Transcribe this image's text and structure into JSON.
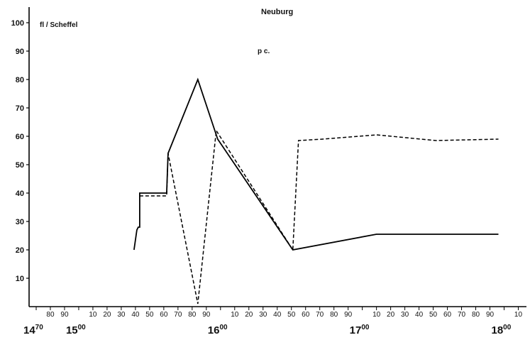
{
  "chart_data": {
    "type": "line",
    "title": "Neuburg",
    "ylabel": "fl / Scheffel",
    "annotation": "p c.",
    "ylim": [
      0,
      105
    ],
    "xlim": [
      1465,
      1811
    ],
    "grid": false,
    "yticks": [
      10,
      20,
      30,
      40,
      50,
      60,
      70,
      80,
      90,
      100
    ],
    "xtick_minor": [
      {
        "year": 1480,
        "label": "80"
      },
      {
        "year": 1490,
        "label": "90"
      },
      {
        "year": 1510,
        "label": "10"
      },
      {
        "year": 1520,
        "label": "20"
      },
      {
        "year": 1530,
        "label": "30"
      },
      {
        "year": 1540,
        "label": "40"
      },
      {
        "year": 1550,
        "label": "50"
      },
      {
        "year": 1560,
        "label": "60"
      },
      {
        "year": 1570,
        "label": "70"
      },
      {
        "year": 1580,
        "label": "80"
      },
      {
        "year": 1590,
        "label": "90"
      },
      {
        "year": 1610,
        "label": "10"
      },
      {
        "year": 1620,
        "label": "20"
      },
      {
        "year": 1630,
        "label": "30"
      },
      {
        "year": 1640,
        "label": "40"
      },
      {
        "year": 1650,
        "label": "50"
      },
      {
        "year": 1660,
        "label": "60"
      },
      {
        "year": 1670,
        "label": "70"
      },
      {
        "year": 1680,
        "label": "80"
      },
      {
        "year": 1690,
        "label": "90"
      },
      {
        "year": 1710,
        "label": "10"
      },
      {
        "year": 1720,
        "label": "20"
      },
      {
        "year": 1730,
        "label": "30"
      },
      {
        "year": 1740,
        "label": "40"
      },
      {
        "year": 1750,
        "label": "50"
      },
      {
        "year": 1760,
        "label": "60"
      },
      {
        "year": 1770,
        "label": "70"
      },
      {
        "year": 1780,
        "label": "80"
      },
      {
        "year": 1790,
        "label": "90"
      },
      {
        "year": 1810,
        "label": "10"
      }
    ],
    "xtick_major": [
      {
        "year": 1470,
        "base": "14",
        "sup": "70"
      },
      {
        "year": 1500,
        "base": "15",
        "sup": "00"
      },
      {
        "year": 1600,
        "base": "16",
        "sup": "00"
      },
      {
        "year": 1700,
        "base": "17",
        "sup": "00"
      },
      {
        "year": 1800,
        "base": "18",
        "sup": "00"
      }
    ],
    "series": [
      {
        "style": "solid",
        "color": "#000000",
        "points": [
          [
            1539,
            20
          ],
          [
            1541,
            27
          ],
          [
            1542,
            28
          ],
          [
            1543,
            28
          ],
          [
            1543,
            40
          ],
          [
            1552,
            40
          ],
          [
            1562,
            40
          ],
          [
            1563,
            54
          ],
          [
            1584,
            80
          ],
          [
            1598,
            59
          ],
          [
            1651,
            20
          ],
          [
            1710,
            25.5
          ],
          [
            1796,
            25.5
          ]
        ]
      },
      {
        "style": "dashed",
        "color": "#000000",
        "points": [
          [
            1543,
            39
          ],
          [
            1561,
            39
          ],
          [
            1562,
            39
          ],
          [
            1563,
            54
          ],
          [
            1584,
            1
          ],
          [
            1597,
            62
          ],
          [
            1651,
            20
          ],
          [
            1655,
            58.5
          ],
          [
            1672,
            59
          ],
          [
            1710,
            60.5
          ],
          [
            1752,
            58.5
          ],
          [
            1796,
            59
          ]
        ]
      }
    ]
  }
}
